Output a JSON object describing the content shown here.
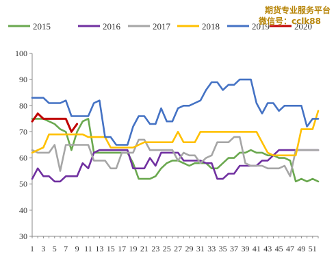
{
  "watermark": {
    "line1": "期货专业服务平台",
    "line2": "微信号：cclk88"
  },
  "chart_data": {
    "type": "line",
    "title": "",
    "xlabel": "",
    "ylabel": "",
    "ylim": [
      30,
      100
    ],
    "yticks": [
      30,
      40,
      50,
      60,
      70,
      80,
      90,
      100
    ],
    "xlim": [
      1,
      52
    ],
    "xtick_labels": [
      "1",
      "3",
      "5",
      "7",
      "9",
      "11",
      "13",
      "15",
      "17",
      "19",
      "21",
      "23",
      "25",
      "27",
      "29",
      "31",
      "33",
      "35",
      "37",
      "39",
      "41",
      "43",
      "45",
      "47",
      "49",
      "51"
    ],
    "grid": false,
    "legend_position": "top",
    "series": [
      {
        "name": "2015",
        "color": "#6aa84f",
        "x": [
          1,
          2,
          3,
          4,
          5,
          6,
          7,
          8,
          9,
          10,
          11,
          12,
          13,
          14,
          15,
          16,
          17,
          18,
          19,
          20,
          21,
          22,
          23,
          24,
          25,
          26,
          27,
          28,
          29,
          30,
          31,
          32,
          33,
          34,
          35,
          36,
          37,
          38,
          39,
          40,
          41,
          42,
          43,
          44,
          45,
          46,
          47,
          48,
          49,
          50,
          51,
          52
        ],
        "y": [
          75,
          75,
          75,
          74,
          73,
          71,
          70,
          63,
          70,
          74,
          75,
          62,
          62,
          62,
          62,
          62,
          62,
          62,
          58,
          52,
          52,
          52,
          53,
          56,
          58,
          59,
          59,
          58,
          57,
          58,
          58,
          58,
          56,
          56,
          58,
          60,
          60,
          62,
          62,
          63,
          62,
          62,
          61,
          61,
          60,
          60,
          59,
          51,
          52,
          51,
          52,
          51
        ]
      },
      {
        "name": "2016",
        "color": "#7030a0",
        "x": [
          1,
          2,
          3,
          4,
          5,
          6,
          7,
          8,
          9,
          10,
          11,
          12,
          13,
          14,
          15,
          16,
          17,
          18,
          19,
          20,
          21,
          22,
          23,
          24,
          25,
          26,
          27,
          28,
          29,
          30,
          31,
          32,
          33,
          34,
          35,
          36,
          37,
          38,
          39,
          40,
          41,
          42,
          43,
          44,
          45,
          46,
          47,
          48,
          49,
          50,
          51,
          52
        ],
        "y": [
          52,
          56,
          53,
          53,
          51,
          51,
          53,
          53,
          53,
          58,
          56,
          62,
          63,
          63,
          63,
          63,
          63,
          63,
          56,
          56,
          56,
          60,
          57,
          62,
          62,
          62,
          62,
          59,
          59,
          59,
          59,
          58,
          58,
          52,
          52,
          54,
          54,
          57,
          57,
          57,
          57,
          59,
          59,
          61,
          63,
          63,
          63,
          63,
          63,
          63,
          63,
          63
        ]
      },
      {
        "name": "2017",
        "color": "#a6a6a6",
        "x": [
          1,
          2,
          3,
          4,
          5,
          6,
          7,
          8,
          9,
          10,
          11,
          12,
          13,
          14,
          15,
          16,
          17,
          18,
          19,
          20,
          21,
          22,
          23,
          24,
          25,
          26,
          27,
          28,
          29,
          30,
          31,
          32,
          33,
          34,
          35,
          36,
          37,
          38,
          39,
          40,
          41,
          42,
          43,
          44,
          45,
          46,
          47,
          48,
          49,
          50,
          51,
          52
        ],
        "y": [
          63,
          62,
          62,
          62,
          65,
          55,
          65,
          65,
          65,
          65,
          65,
          59,
          59,
          59,
          56,
          56,
          62,
          62,
          62,
          67,
          67,
          63,
          63,
          63,
          63,
          63,
          59,
          62,
          61,
          61,
          58,
          60,
          61,
          66,
          66,
          66,
          68,
          68,
          58,
          57,
          57,
          57,
          56,
          56,
          56,
          57,
          53,
          63,
          63,
          63,
          63,
          63
        ]
      },
      {
        "name": "2018",
        "color": "#ffc000",
        "x": [
          1,
          2,
          3,
          4,
          5,
          6,
          7,
          8,
          9,
          10,
          11,
          12,
          13,
          14,
          15,
          16,
          17,
          18,
          19,
          20,
          21,
          22,
          23,
          24,
          25,
          26,
          27,
          28,
          29,
          30,
          31,
          32,
          33,
          34,
          35,
          36,
          37,
          38,
          39,
          40,
          41,
          42,
          43,
          44,
          45,
          46,
          47,
          48,
          49,
          50,
          51,
          52
        ],
        "y": [
          62,
          63,
          64,
          69,
          69,
          69,
          69,
          69,
          69,
          69,
          68,
          68,
          68,
          68,
          64,
          64,
          64,
          64,
          64,
          65,
          66,
          66,
          66,
          66,
          66,
          66,
          70,
          66,
          66,
          66,
          70,
          70,
          70,
          70,
          70,
          70,
          70,
          70,
          70,
          70,
          70,
          66,
          62,
          61,
          61,
          61,
          61,
          61,
          71,
          71,
          71,
          78
        ]
      },
      {
        "name": "2019",
        "color": "#4472c4",
        "x": [
          1,
          2,
          3,
          4,
          5,
          6,
          7,
          8,
          9,
          10,
          11,
          12,
          13,
          14,
          15,
          16,
          17,
          18,
          19,
          20,
          21,
          22,
          23,
          24,
          25,
          26,
          27,
          28,
          29,
          30,
          31,
          32,
          33,
          34,
          35,
          36,
          37,
          38,
          39,
          40,
          41,
          42,
          43,
          44,
          45,
          46,
          47,
          48,
          49,
          50,
          51,
          52
        ],
        "y": [
          83,
          83,
          83,
          81,
          81,
          81,
          82,
          76,
          76,
          76,
          76,
          81,
          82,
          68,
          68,
          65,
          65,
          65,
          72,
          76,
          76,
          73,
          73,
          79,
          74,
          74,
          79,
          80,
          80,
          81,
          82,
          86,
          89,
          89,
          86,
          88,
          88,
          90,
          90,
          90,
          81,
          77,
          81,
          81,
          78,
          80,
          80,
          80,
          80,
          72,
          75,
          75
        ]
      },
      {
        "name": "2020",
        "color": "#c00000",
        "x": [
          1,
          2,
          3,
          4,
          5,
          6,
          7,
          8,
          9
        ],
        "y": [
          74,
          77,
          75,
          75,
          75,
          75,
          75,
          70,
          73
        ]
      }
    ]
  }
}
